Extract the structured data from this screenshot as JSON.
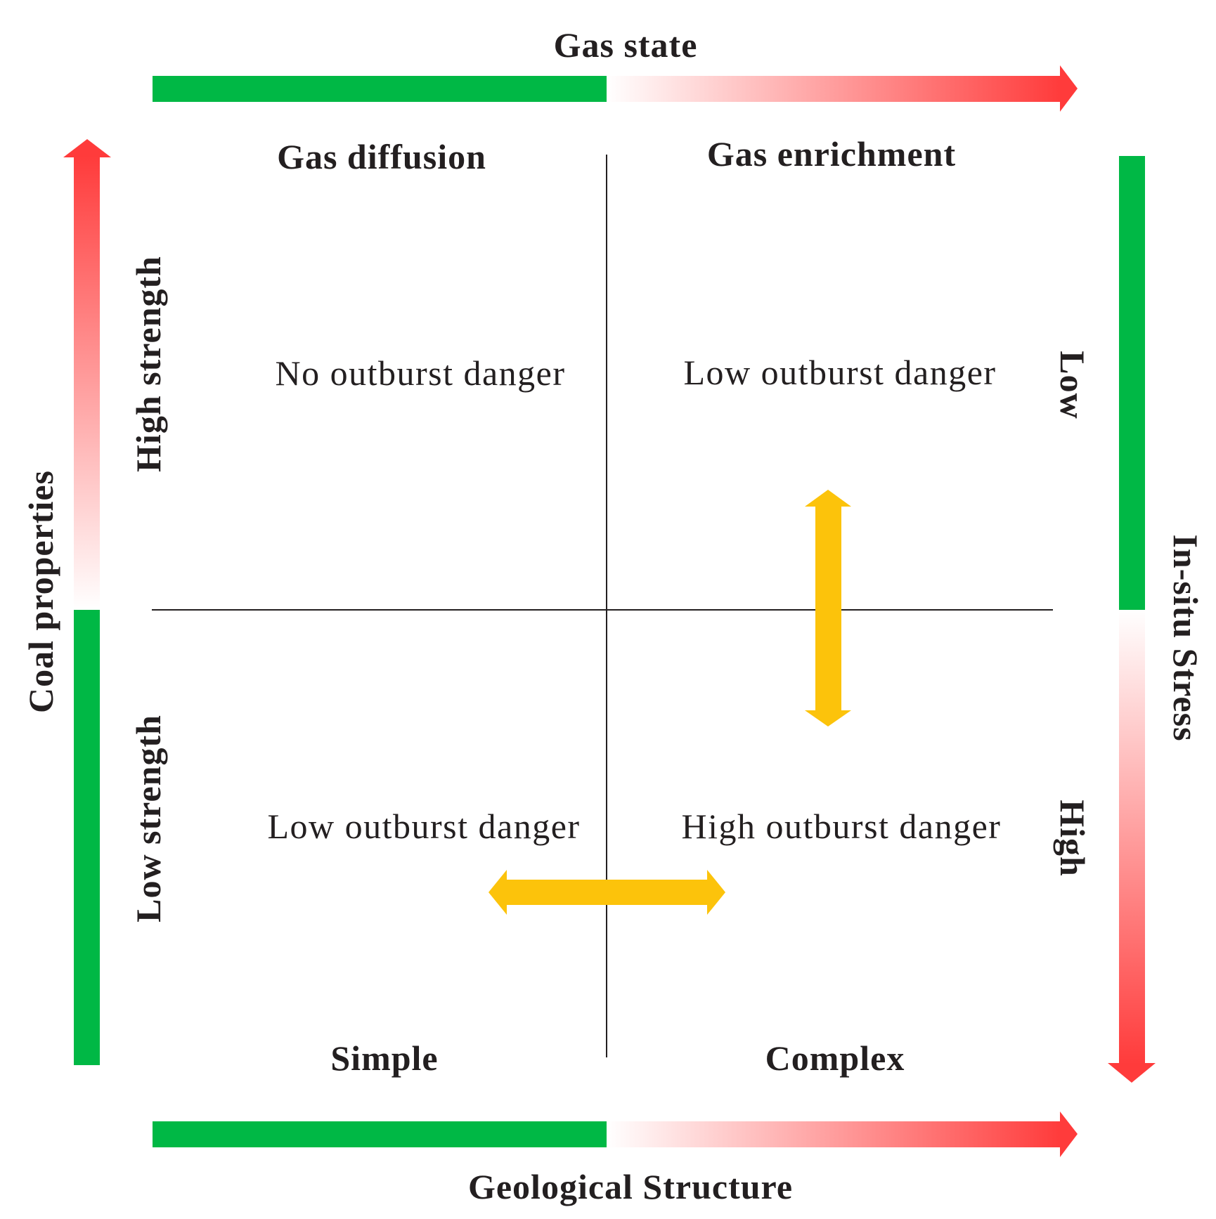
{
  "axes": {
    "top": "Gas state",
    "bottom": "Geological Structure",
    "left": "Coal properties",
    "right": "In-situ Stress"
  },
  "columns": {
    "top_left": "Gas diffusion",
    "top_right": "Gas enrichment",
    "bottom_left": "Simple",
    "bottom_right": "Complex"
  },
  "rows": {
    "upper": "High strength",
    "lower": "Low strength"
  },
  "stress_levels": {
    "upper": "Low",
    "lower": "High"
  },
  "quadrants": {
    "top_left": "No outburst danger",
    "top_right": "Low outburst danger",
    "bottom_left": "Low outburst danger",
    "bottom_right": "High outburst danger"
  },
  "colors": {
    "green": "#00b845",
    "red": "#ff3b3b",
    "yellow": "#fcc30b",
    "line": "#231f20"
  }
}
